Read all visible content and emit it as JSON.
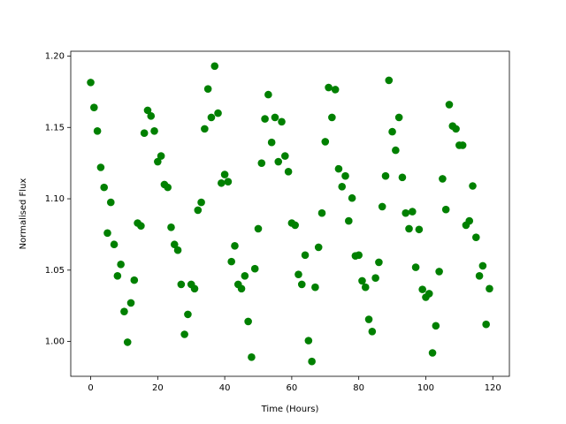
{
  "chart_data": {
    "type": "scatter",
    "xlabel": "Time (Hours)",
    "ylabel": "Normalised Flux",
    "color": "#008000",
    "x": [
      0,
      1,
      2,
      3,
      4,
      5,
      6,
      7,
      8,
      9,
      10,
      11,
      12,
      13,
      14,
      15,
      16,
      17,
      18,
      19,
      20,
      21,
      22,
      23,
      24,
      25,
      26,
      27,
      28,
      29,
      30,
      31,
      32,
      33,
      34,
      35,
      36,
      37,
      38,
      39,
      40,
      41,
      42,
      43,
      44,
      45,
      46,
      47,
      48,
      49,
      50,
      51,
      52,
      53,
      54,
      55,
      56,
      57,
      58,
      59,
      60,
      61,
      62,
      63,
      64,
      65,
      66,
      67,
      68,
      69,
      70,
      71,
      72,
      73,
      74,
      75,
      76,
      77,
      78,
      79,
      80,
      81,
      82,
      83,
      84,
      85,
      86,
      87,
      88,
      89,
      90,
      91,
      92,
      93,
      94,
      95,
      96,
      97,
      98,
      99,
      100,
      101,
      102,
      103,
      104,
      105,
      106,
      107,
      108,
      109,
      110,
      111,
      112,
      113,
      114,
      115,
      116,
      117,
      118,
      119
    ],
    "values": [
      1.1815,
      1.164,
      1.1475,
      1.122,
      1.108,
      1.076,
      1.0975,
      1.068,
      1.046,
      1.054,
      1.021,
      0.9995,
      1.027,
      1.043,
      1.083,
      1.081,
      1.146,
      1.162,
      1.158,
      1.1475,
      1.126,
      1.13,
      1.11,
      1.108,
      1.08,
      1.068,
      1.064,
      1.04,
      1.005,
      1.019,
      1.04,
      1.037,
      1.092,
      1.0975,
      1.149,
      1.177,
      1.157,
      1.193,
      1.16,
      1.111,
      1.117,
      1.112,
      1.056,
      1.067,
      1.04,
      1.037,
      1.046,
      1.014,
      0.989,
      1.051,
      1.079,
      1.125,
      1.156,
      1.173,
      1.1395,
      1.157,
      1.126,
      1.154,
      1.13,
      1.119,
      1.083,
      1.0815,
      1.047,
      1.04,
      1.0605,
      1.0006,
      0.986,
      1.038,
      1.066,
      1.09,
      1.14,
      1.178,
      1.157,
      1.1765,
      1.121,
      1.1085,
      1.116,
      1.0845,
      1.1005,
      1.06,
      1.0605,
      1.0425,
      1.038,
      1.0155,
      1.007,
      1.0445,
      1.0555,
      1.0945,
      1.116,
      1.183,
      1.147,
      1.134,
      1.157,
      1.115,
      1.09,
      1.079,
      1.091,
      1.052,
      1.0785,
      1.0365,
      1.031,
      1.0335,
      0.992,
      1.011,
      1.049,
      1.114,
      1.0925,
      1.166,
      1.151,
      1.149,
      1.1375,
      1.1375,
      1.0815,
      1.0845,
      1.109,
      1.073,
      1.046,
      1.053,
      1.012,
      1.037
    ],
    "xlim": [
      -5.95,
      124.95
    ],
    "xticks": [
      0,
      20,
      40,
      60,
      80,
      100,
      120
    ],
    "ylim": [
      0.9756,
      1.2034
    ],
    "yticks": [
      {
        "value": 1.0,
        "label": "1.00"
      },
      {
        "value": 1.05,
        "label": "1.05"
      },
      {
        "value": 1.1,
        "label": "1.10"
      },
      {
        "value": 1.15,
        "label": "1.15"
      },
      {
        "value": 1.2,
        "label": "1.20"
      }
    ]
  }
}
